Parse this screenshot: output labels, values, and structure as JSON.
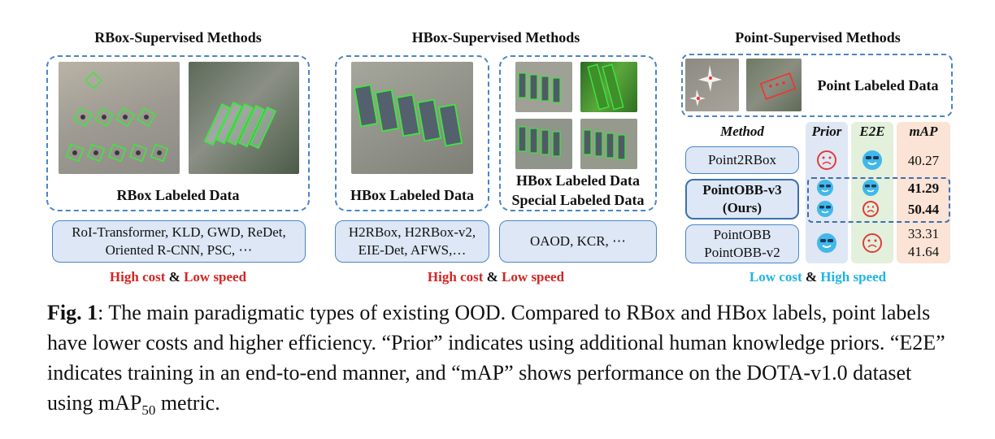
{
  "sections": {
    "rbox": {
      "title": "RBox-Supervised Methods",
      "data_label": "RBox Labeled Data",
      "methods": [
        "RoI-Transformer,  KLD, GWD, ReDet,",
        "Oriented R-CNN, PSC, ⋯"
      ],
      "cost_a": "High cost",
      "amp": "&",
      "cost_b": "Low speed"
    },
    "hbox": {
      "title": "HBox-Supervised Methods",
      "data_label": "HBox Labeled Data",
      "data_label2": [
        "HBox Labeled Data",
        "Special Labeled Data"
      ],
      "methods_a": [
        "H2RBox, H2RBox-v2,",
        "EIE-Det, AFWS,…"
      ],
      "methods_b": "OAOD, KCR, ⋯",
      "cost_a": "High cost",
      "amp": "&",
      "cost_b": "Low speed"
    },
    "point": {
      "title": "Point-Supervised Methods",
      "data_label": "Point Labeled Data",
      "headers": {
        "method": "Method",
        "prior": "Prior",
        "e2e": "E2E",
        "map": "mAP"
      },
      "rows": [
        {
          "method": [
            "Point2RBox"
          ],
          "prior": "sad",
          "e2e": "happy",
          "map": [
            "40.27"
          ]
        },
        {
          "method": [
            "PointOBB-v3",
            "(Ours)"
          ],
          "prior": "happy",
          "e2e": "happy",
          "map": [
            "41.29",
            "50.44"
          ],
          "prior2": "happy",
          "e2e2": "sad"
        },
        {
          "method": [
            "PointOBB",
            "PointOBB-v2"
          ],
          "prior": "happy",
          "e2e": "sad",
          "map": [
            "33.31",
            "41.64"
          ]
        }
      ],
      "cost_a": "Low cost",
      "amp": "&",
      "cost_b": "High speed"
    }
  },
  "caption": {
    "label": "Fig. 1",
    "text": ": The main paradigmatic types of existing OOD. Compared to RBox and HBox labels, point labels have lower costs and higher efficiency. “Prior” indicates using additional human knowledge priors. “E2E” indicates training in an end-to-end manner, and “mAP” shows performance on the DOTA-v1.0 dataset using mAP",
    "subscript": "50",
    "tail": " metric."
  },
  "colors": {
    "accent_blue": "#4a86c6",
    "red": "#d42424",
    "cyan": "#1eb4e6",
    "prior_col": "#dfe7f4",
    "e2e_col": "#e2f0dc",
    "map_col": "#fbe3d6"
  }
}
